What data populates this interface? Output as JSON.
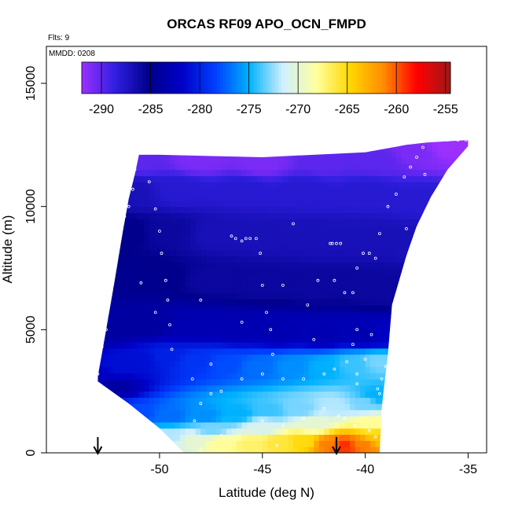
{
  "chart_data": {
    "type": "heatmap",
    "title": "ORCAS RF09 APO_OCN_FMPD",
    "subtitle_flights": "Flts: 9",
    "annotation_mmdd": "MMDD: 0208",
    "xlabel": "Latitude (deg N)",
    "ylabel": "Altitude (m)",
    "xlim": [
      -55.5,
      -34.1
    ],
    "ylim": [
      0,
      16500
    ],
    "x_ticks": [
      -50,
      -45,
      -40,
      -35
    ],
    "x_tick_labels": [
      "-50",
      "-45",
      "-40",
      "-35"
    ],
    "y_ticks": [
      0,
      5000,
      10000,
      15000
    ],
    "y_tick_labels": [
      "0",
      "5000",
      "10000",
      "15000"
    ],
    "colorbar": {
      "min": -292,
      "max": -254.5,
      "ticks": [
        -290,
        -285,
        -280,
        -275,
        -270,
        -265,
        -260,
        -255
      ],
      "tick_labels": [
        "-290",
        "-285",
        "-280",
        "-275",
        "-270",
        "-265",
        "-260",
        "-255"
      ],
      "colors": [
        "#9b30ff",
        "#2f1fe0",
        "#00008b",
        "#0000c8",
        "#0040ff",
        "#00b2ff",
        "#cfefff",
        "#ffff9e",
        "#ffd700",
        "#ff8c00",
        "#ff0000",
        "#a01818"
      ]
    },
    "field_boundary": [
      [
        -53.0,
        3100
      ],
      [
        -52.7,
        4500
      ],
      [
        -52.2,
        6900
      ],
      [
        -51.8,
        8900
      ],
      [
        -51.5,
        10300
      ],
      [
        -51.2,
        11300
      ],
      [
        -51.0,
        12100
      ],
      [
        -50.0,
        12100
      ],
      [
        -45.0,
        12000
      ],
      [
        -40.0,
        12200
      ],
      [
        -38.0,
        12500
      ],
      [
        -37.0,
        12600
      ],
      [
        -35.0,
        12700
      ],
      [
        -35.0,
        12450
      ],
      [
        -36.0,
        11500
      ],
      [
        -36.8,
        10400
      ],
      [
        -37.5,
        9200
      ],
      [
        -38.0,
        8000
      ],
      [
        -38.7,
        6000
      ],
      [
        -38.9,
        4000
      ],
      [
        -39.1,
        2600
      ],
      [
        -39.2,
        1800
      ],
      [
        -39.3,
        0
      ],
      [
        -48.8,
        0
      ],
      [
        -50.0,
        1000
      ],
      [
        -51.5,
        2000
      ],
      [
        -53.0,
        2900
      ]
    ],
    "samples": [
      [
        -52.3,
        2700,
        -284
      ],
      [
        -52.6,
        3100,
        -282
      ],
      [
        -51.8,
        3500,
        -281
      ],
      [
        -50.9,
        3800,
        -281
      ],
      [
        -49.7,
        3900,
        -280
      ],
      [
        -48.2,
        3700,
        -279
      ],
      [
        -46.8,
        3600,
        -278
      ],
      [
        -45.2,
        3500,
        -277
      ],
      [
        -43.5,
        3500,
        -276
      ],
      [
        -42.0,
        3500,
        -275
      ],
      [
        -40.6,
        3600,
        -274
      ],
      [
        -39.3,
        3700,
        -273
      ],
      [
        -52.5,
        1700,
        -279
      ],
      [
        -51.0,
        1600,
        -278
      ],
      [
        -49.5,
        1500,
        -277
      ],
      [
        -47.8,
        1500,
        -276
      ],
      [
        -46.2,
        1600,
        -275
      ],
      [
        -44.7,
        1700,
        -274
      ],
      [
        -43.2,
        1800,
        -273
      ],
      [
        -41.5,
        1900,
        -272
      ],
      [
        -40.0,
        2000,
        -273
      ],
      [
        -39.4,
        2300,
        -275
      ],
      [
        -49.5,
        700,
        -272
      ],
      [
        -48.3,
        550,
        -270
      ],
      [
        -47.0,
        400,
        -268
      ],
      [
        -45.5,
        350,
        -267
      ],
      [
        -44.2,
        400,
        -266
      ],
      [
        -43.0,
        450,
        -265
      ],
      [
        -41.8,
        350,
        -261
      ],
      [
        -41.0,
        300,
        -259
      ],
      [
        -40.2,
        350,
        -261
      ],
      [
        -39.4,
        600,
        -264
      ],
      [
        -45.0,
        1100,
        -271
      ],
      [
        -42.5,
        1200,
        -270
      ],
      [
        -47.5,
        1000,
        -273
      ],
      [
        -39.6,
        1200,
        -268
      ],
      [
        -52.4,
        5000,
        -284
      ],
      [
        -50.6,
        5200,
        -284
      ],
      [
        -48.4,
        5100,
        -283
      ],
      [
        -46.2,
        5000,
        -283
      ],
      [
        -44.2,
        4900,
        -283
      ],
      [
        -42.0,
        4800,
        -283
      ],
      [
        -40.0,
        4800,
        -283
      ],
      [
        -39.0,
        4800,
        -282
      ],
      [
        -52.1,
        7200,
        -285
      ],
      [
        -50.0,
        7100,
        -285
      ],
      [
        -47.5,
        7000,
        -286
      ],
      [
        -45.0,
        6800,
        -286
      ],
      [
        -42.5,
        6700,
        -286
      ],
      [
        -40.0,
        6700,
        -286
      ],
      [
        -38.8,
        6500,
        -286
      ],
      [
        -51.8,
        9000,
        -285
      ],
      [
        -49.5,
        9000,
        -286
      ],
      [
        -47.2,
        8900,
        -287
      ],
      [
        -45.0,
        8800,
        -287
      ],
      [
        -42.5,
        8700,
        -287
      ],
      [
        -40.0,
        8700,
        -287
      ],
      [
        -37.9,
        8600,
        -287
      ],
      [
        -51.4,
        10600,
        -287
      ],
      [
        -49.0,
        10700,
        -288
      ],
      [
        -46.0,
        10700,
        -288
      ],
      [
        -43.0,
        10700,
        -288
      ],
      [
        -40.0,
        10600,
        -288
      ],
      [
        -37.3,
        10300,
        -288
      ],
      [
        -51.0,
        11900,
        -290
      ],
      [
        -48.0,
        11900,
        -291
      ],
      [
        -45.0,
        11800,
        -291
      ],
      [
        -42.0,
        11800,
        -290
      ],
      [
        -39.5,
        11900,
        -290
      ],
      [
        -37.5,
        12200,
        -291
      ],
      [
        -36.0,
        12400,
        -292
      ],
      [
        -35.2,
        12600,
        -292
      ]
    ],
    "flight_points": [
      [
        -51.0,
        12200
      ],
      [
        -50.7,
        12200
      ],
      [
        -51.2,
        11500
      ],
      [
        -50.5,
        11000
      ],
      [
        -51.3,
        10700
      ],
      [
        -51.5,
        10000
      ],
      [
        -50.2,
        9900
      ],
      [
        -51.7,
        9600
      ],
      [
        -51.9,
        9200
      ],
      [
        -50.0,
        9000
      ],
      [
        -52.1,
        8700
      ],
      [
        -49.9,
        8100
      ],
      [
        -52.2,
        7900
      ],
      [
        -52.3,
        7000
      ],
      [
        -49.7,
        7000
      ],
      [
        -52.4,
        6500
      ],
      [
        -49.6,
        6200
      ],
      [
        -52.5,
        6000
      ],
      [
        -49.5,
        5200
      ],
      [
        -52.6,
        5000
      ],
      [
        -52.8,
        4300
      ],
      [
        -49.4,
        4200
      ],
      [
        -53.0,
        3200
      ],
      [
        -48.4,
        3000
      ],
      [
        -48.0,
        2000
      ],
      [
        -47.5,
        2400
      ],
      [
        -46.3,
        8700
      ],
      [
        -46.0,
        8600
      ],
      [
        -45.8,
        8700
      ],
      [
        -45.6,
        8700
      ],
      [
        -45.3,
        8700
      ],
      [
        -45.1,
        8100
      ],
      [
        -46.5,
        8800
      ],
      [
        -45.0,
        6800
      ],
      [
        -44.8,
        5700
      ],
      [
        -44.6,
        5000
      ],
      [
        -44.5,
        4000
      ],
      [
        -44.0,
        6800
      ],
      [
        -42.5,
        4600
      ],
      [
        -42.8,
        6000
      ],
      [
        -42.3,
        7000
      ],
      [
        -41.7,
        8500
      ],
      [
        -41.6,
        8500
      ],
      [
        -41.4,
        8500
      ],
      [
        -41.2,
        8500
      ],
      [
        -41.5,
        7000
      ],
      [
        -41.0,
        6500
      ],
      [
        -40.6,
        6500
      ],
      [
        -40.4,
        7500
      ],
      [
        -40.1,
        8100
      ],
      [
        -39.8,
        8100
      ],
      [
        -39.5,
        7900
      ],
      [
        -39.3,
        8900
      ],
      [
        -38.9,
        10000
      ],
      [
        -38.5,
        10500
      ],
      [
        -38.1,
        11200
      ],
      [
        -37.8,
        11600
      ],
      [
        -37.5,
        12000
      ],
      [
        -37.2,
        12400
      ],
      [
        -36.8,
        12700
      ],
      [
        -36.5,
        12700
      ],
      [
        -36.0,
        12700
      ],
      [
        -35.5,
        12700
      ],
      [
        -35.1,
        12700
      ],
      [
        -38.4,
        6200
      ],
      [
        -38.6,
        5000
      ],
      [
        -38.8,
        4000
      ],
      [
        -39.0,
        3500
      ],
      [
        -39.2,
        3000
      ],
      [
        -39.4,
        2600
      ],
      [
        -40.4,
        2800
      ],
      [
        -40.0,
        3800
      ],
      [
        -39.7,
        4800
      ],
      [
        -40.4,
        5000
      ],
      [
        -40.6,
        4400
      ],
      [
        -40.9,
        3700
      ],
      [
        -41.5,
        3400
      ],
      [
        -42.0,
        3200
      ],
      [
        -43.0,
        3000
      ],
      [
        -44.0,
        3000
      ],
      [
        -45.0,
        3200
      ],
      [
        -46.0,
        3000
      ],
      [
        -47.0,
        2500
      ],
      [
        -48.3,
        1300
      ],
      [
        -47.0,
        700
      ],
      [
        -45.0,
        1300
      ],
      [
        -44.0,
        1100
      ],
      [
        -43.0,
        1400
      ],
      [
        -42.0,
        1800
      ],
      [
        -41.3,
        1500
      ],
      [
        -40.5,
        1100
      ],
      [
        -39.8,
        900
      ],
      [
        -39.5,
        650
      ],
      [
        -44.3,
        300
      ],
      [
        -48.0,
        100
      ],
      [
        -50.2,
        5700
      ],
      [
        -50.9,
        6900
      ],
      [
        -48.0,
        6200
      ],
      [
        -46.0,
        5300
      ],
      [
        -47.5,
        3600
      ],
      [
        -41.0,
        1400
      ],
      [
        -43.5,
        9300
      ],
      [
        -40.4,
        3200
      ],
      [
        -39.3,
        2400
      ],
      [
        -37.1,
        11300
      ],
      [
        -36.3,
        10200
      ],
      [
        -38.0,
        9100
      ]
    ],
    "markers": [
      {
        "label": "arrow",
        "x": -53.0
      },
      {
        "label": "arrow",
        "x": -41.4
      }
    ]
  }
}
